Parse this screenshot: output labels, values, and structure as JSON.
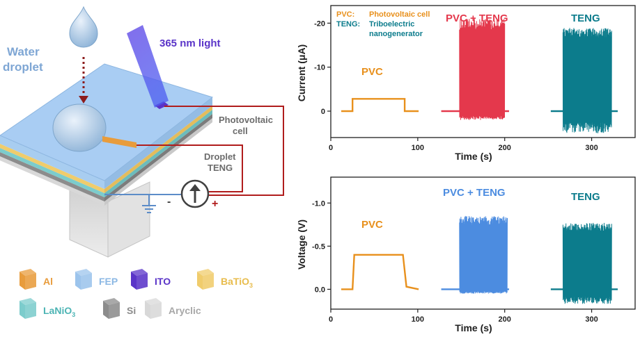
{
  "colors": {
    "al": "#e89c3c",
    "fep": "#9cc4ec",
    "ito": "#5a34c8",
    "batio3": "#f0cc6c",
    "lanio3": "#7ccccc",
    "si": "#8c8c8c",
    "acrylic": "#d8d8d8",
    "pvc": "#e8901c",
    "pvc_teng_current": "#e4384c",
    "pvc_teng_voltage": "#4c8ce0",
    "teng": "#0c7c8c",
    "wire": "#b01c1c",
    "ground": "#5c8cc8"
  },
  "diagram": {
    "water_droplet_label": [
      "Water",
      "droplet"
    ],
    "light_label": "365 nm light",
    "photovoltaic_label": [
      "Photovoltaic",
      "cell"
    ],
    "droplet_teng_label": [
      "Droplet",
      "TENG"
    ],
    "minus": "-",
    "plus": "+"
  },
  "legend": [
    {
      "label": "Al",
      "color_key": "al",
      "sub": ""
    },
    {
      "label": "FEP",
      "color_key": "fep",
      "sub": ""
    },
    {
      "label": "ITO",
      "color_key": "ito",
      "sub": ""
    },
    {
      "label": "BaTiO",
      "color_key": "batio3",
      "sub": "3"
    },
    {
      "label": "LaNiO",
      "color_key": "lanio3",
      "sub": "3"
    },
    {
      "label": "Si",
      "color_key": "si",
      "sub": ""
    },
    {
      "label": "Aryclic",
      "color_key": "acrylic",
      "sub": ""
    }
  ],
  "chart_data": [
    {
      "type": "line",
      "xlabel": "Time (s)",
      "ylabel": "Current (μA)",
      "x_ticks": [
        0,
        100,
        200,
        300
      ],
      "y_ticks": [
        0,
        -10,
        -20
      ],
      "y_inverted": true,
      "xlim": [
        0,
        350
      ],
      "ylim": [
        6,
        -24
      ],
      "legend": [
        {
          "key": "PVC:",
          "text": "Photovoltaic cell"
        },
        {
          "key": "TENG:",
          "text": "Triboelectric nanogenerator"
        }
      ],
      "labels": [
        "PVC",
        "PVC + TENG",
        "TENG"
      ],
      "series": [
        {
          "name": "PVC",
          "segments": [
            [
              12,
              0
            ],
            [
              25,
              0
            ],
            [
              25,
              -2.8
            ],
            [
              85,
              -2.8
            ],
            [
              85,
              0
            ],
            [
              101,
              0
            ]
          ]
        },
        {
          "name": "PVC + TENG",
          "base": 0,
          "start": 127,
          "end": 205,
          "burst": [
            148,
            200
          ],
          "range": [
            -21,
            2
          ]
        },
        {
          "name": "TENG",
          "base": 0,
          "start": 253,
          "end": 330,
          "burst": [
            267,
            323
          ],
          "range": [
            -19,
            5
          ]
        }
      ]
    },
    {
      "type": "line",
      "xlabel": "Time (s)",
      "ylabel": "Voltage (V)",
      "x_ticks": [
        0,
        100,
        200,
        300
      ],
      "y_ticks": [
        0.0,
        -0.5,
        -1.0
      ],
      "y_tick_labels": [
        "0.0",
        "-0.5",
        "-1.0"
      ],
      "y_inverted": true,
      "xlim": [
        0,
        350
      ],
      "ylim": [
        0.23,
        -1.3
      ],
      "labels": [
        "PVC",
        "PVC + TENG",
        "TENG"
      ],
      "series": [
        {
          "name": "PVC",
          "segments": [
            [
              12,
              0
            ],
            [
              25,
              0
            ],
            [
              27,
              -0.4
            ],
            [
              83,
              -0.4
            ],
            [
              87,
              -0.03
            ],
            [
              101,
              0
            ]
          ]
        },
        {
          "name": "PVC + TENG",
          "base": 0,
          "start": 127,
          "end": 205,
          "burst": [
            148,
            203
          ],
          "range": [
            -0.85,
            0.05
          ]
        },
        {
          "name": "TENG",
          "base": 0,
          "start": 253,
          "end": 330,
          "burst": [
            267,
            323
          ],
          "range": [
            -0.77,
            0.17
          ]
        }
      ]
    }
  ]
}
